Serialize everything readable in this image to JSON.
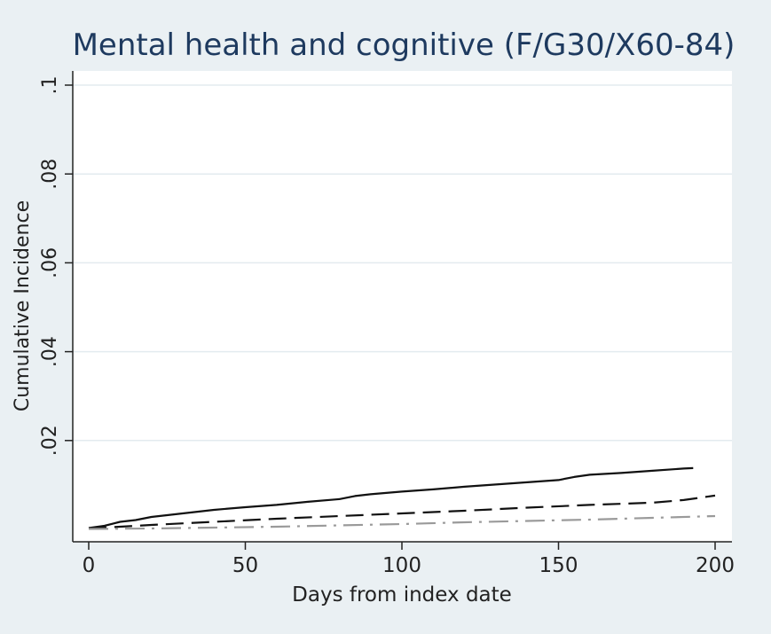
{
  "chart_data": {
    "type": "line",
    "title": "Mental health and cognitive (F/G30/X60-84)",
    "xlabel": "Days from index date",
    "ylabel": "Cumulative Incidence",
    "xlim": [
      0,
      200
    ],
    "ylim": [
      0,
      0.1
    ],
    "x_ticks": [
      "0",
      "50",
      "100",
      "150",
      "200"
    ],
    "x_tick_values": [
      0,
      50,
      100,
      150,
      200
    ],
    "y_ticks": [
      ".02",
      ".04",
      ".06",
      ".08",
      ".1"
    ],
    "y_tick_values": [
      0.02,
      0.04,
      0.06,
      0.08,
      0.1
    ],
    "grid": true,
    "colors": {
      "outer_background": "#eaf0f3",
      "plot_background": "#ffffff",
      "grid": "#e3ebef",
      "title": "#1e3a5f",
      "text": "#222222"
    },
    "series": [
      {
        "style": "solid",
        "color": "#111111",
        "x": [
          0,
          5,
          10,
          15,
          20,
          30,
          40,
          50,
          60,
          70,
          80,
          85,
          90,
          100,
          110,
          120,
          130,
          140,
          150,
          155,
          160,
          170,
          180,
          190,
          193
        ],
        "y": [
          0.0003,
          0.0008,
          0.0017,
          0.0021,
          0.0028,
          0.0036,
          0.0044,
          0.005,
          0.0055,
          0.0062,
          0.0068,
          0.0075,
          0.0079,
          0.0085,
          0.009,
          0.0096,
          0.0101,
          0.0106,
          0.0111,
          0.0118,
          0.0123,
          0.0127,
          0.0132,
          0.0137,
          0.0138
        ]
      },
      {
        "style": "dash",
        "color": "#111111",
        "x": [
          0,
          10,
          20,
          40,
          60,
          80,
          100,
          120,
          140,
          160,
          180,
          190,
          200
        ],
        "y": [
          0.0002,
          0.0006,
          0.001,
          0.0017,
          0.0024,
          0.003,
          0.0036,
          0.0042,
          0.0049,
          0.0055,
          0.006,
          0.0066,
          0.0076
        ]
      },
      {
        "style": "dashdot",
        "color": "#9a9a9a",
        "x": [
          0,
          20,
          40,
          60,
          80,
          100,
          120,
          140,
          160,
          180,
          200
        ],
        "y": [
          0.0001,
          0.0002,
          0.0004,
          0.0006,
          0.0009,
          0.0012,
          0.0016,
          0.0019,
          0.0022,
          0.0026,
          0.003
        ]
      }
    ]
  }
}
